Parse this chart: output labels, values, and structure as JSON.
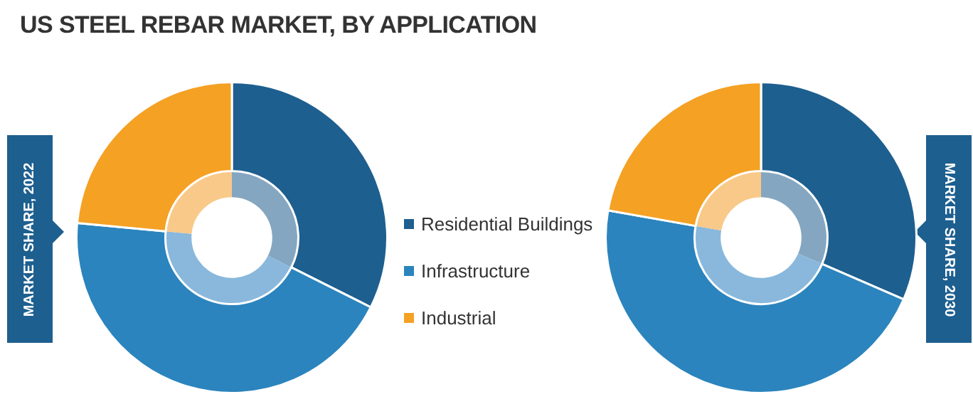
{
  "chart_data": [
    {
      "type": "donut",
      "title": "US STEEL REBAR MARKET, BY APPLICATION",
      "annotations": [
        "MARKET SHARE, 2022"
      ],
      "categories": [
        "Residential Buildings",
        "Infrastructure",
        "Industrial"
      ],
      "legend": "right",
      "series": [
        {
          "values": [
            32.4,
            44.1,
            23.5
          ],
          "colors": [
            "#1d5f8f",
            "#2b84bd",
            "#f4a124"
          ]
        },
        {
          "values": [
            32.4,
            44.1,
            23.5
          ],
          "colors": [
            "#85a6c0",
            "#89b8dc",
            "#f9c98a"
          ]
        }
      ]
    },
    {
      "type": "donut",
      "annotations": [
        "MARKET SHARE, 2030"
      ],
      "categories": [
        null,
        null,
        null
      ],
      "series": [
        {
          "values": [
            31.5,
            46.3,
            22.2
          ],
          "colors": [
            "#1d5f8f",
            "#2b84bd",
            "#f4a124"
          ]
        },
        {
          "values": [
            31.5,
            46.3,
            22.2
          ],
          "colors": [
            "#85a6c0",
            "#89b8dc",
            "#f9c98a"
          ]
        }
      ]
    }
  ]
}
